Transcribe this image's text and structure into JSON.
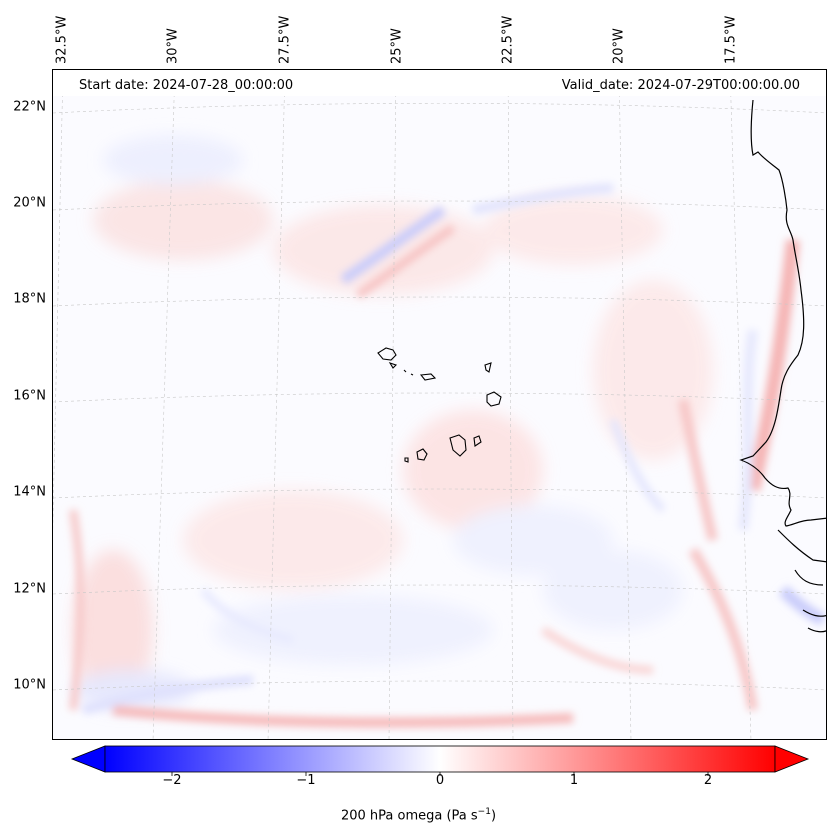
{
  "header": {
    "start_date": "Start date: 2024-07-28_00:00:00",
    "valid_date": "Valid_date: 2024-07-29T00:00:00.00"
  },
  "longitude_labels": [
    "32.5°W",
    "30°W",
    "27.5°W",
    "25°W",
    "22.5°W",
    "20°W",
    "17.5°W"
  ],
  "latitude_labels": [
    "22°N",
    "20°N",
    "18°N",
    "16°N",
    "14°N",
    "12°N",
    "10°N"
  ],
  "colorbar": {
    "ticks": [
      "−2",
      "−1",
      "0",
      "1",
      "2"
    ],
    "label": "200 hPa omega (Pa s",
    "label_sup": "−1",
    "label_close": ")",
    "min": -2.7,
    "max": 2.7,
    "colormap": "bwr",
    "extend": "both"
  },
  "colors": {
    "neg": "#0000ff",
    "pos": "#ff0000",
    "neutral": "#ffffff"
  }
}
